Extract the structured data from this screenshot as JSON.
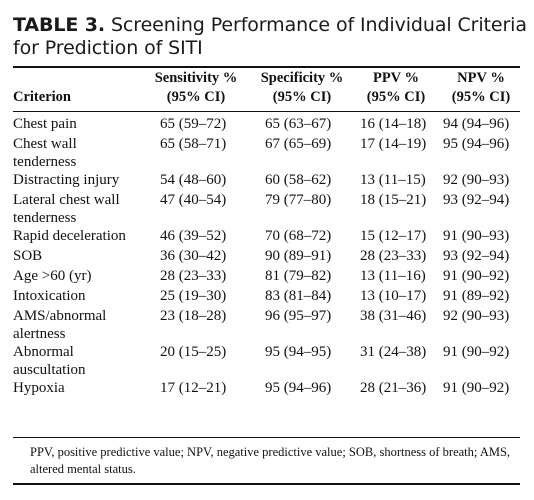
{
  "table": {
    "label": "TABLE 3.",
    "title": "Screening Performance of Individual Criteria for Prediction of SITI",
    "headers": {
      "criterion": "Criterion",
      "sensitivity_line1": "Sensitivity %",
      "sensitivity_line2": "(95% CI)",
      "specificity_line1": "Specificity %",
      "specificity_line2": "(95% CI)",
      "ppv_line1": "PPV %",
      "ppv_line2": "(95% CI)",
      "npv_line1": "NPV %",
      "npv_line2": "(95% CI)"
    },
    "rows": [
      {
        "criterion": "Chest pain",
        "sensitivity": "65 (59–72)",
        "specificity": "65 (63–67)",
        "ppv": "16 (14–18)",
        "npv": "94 (94–96)"
      },
      {
        "criterion": "Chest wall tenderness",
        "sensitivity": "65 (58–71)",
        "specificity": "67 (65–69)",
        "ppv": "17 (14–19)",
        "npv": "95 (94–96)"
      },
      {
        "criterion": "Distracting injury",
        "sensitivity": "54 (48–60)",
        "specificity": "60 (58–62)",
        "ppv": "13 (11–15)",
        "npv": "92 (90–93)"
      },
      {
        "criterion": "Lateral chest wall tenderness",
        "sensitivity": "47 (40–54)",
        "specificity": "79 (77–80)",
        "ppv": "18 (15–21)",
        "npv": "93 (92–94)"
      },
      {
        "criterion": "Rapid deceleration",
        "sensitivity": "46 (39–52)",
        "specificity": "70 (68–72)",
        "ppv": "15 (12–17)",
        "npv": "91 (90–93)"
      },
      {
        "criterion": "SOB",
        "sensitivity": "36 (30–42)",
        "specificity": "90 (89–91)",
        "ppv": "28 (23–33)",
        "npv": "93 (92–94)"
      },
      {
        "criterion": "Age >60 (yr)",
        "sensitivity": "28 (23–33)",
        "specificity": "81 (79–82)",
        "ppv": "13 (11–16)",
        "npv": "91 (90–92)"
      },
      {
        "criterion": "Intoxication",
        "sensitivity": "25 (19–30)",
        "specificity": "83 (81–84)",
        "ppv": "13 (10–17)",
        "npv": "91 (89–92)"
      },
      {
        "criterion": "AMS/abnormal alertness",
        "sensitivity": "23 (18–28)",
        "specificity": "96 (95–97)",
        "ppv": "38 (31–46)",
        "npv": "92 (90–93)"
      },
      {
        "criterion": "Abnormal auscultation",
        "sensitivity": "20 (15–25)",
        "specificity": "95 (94–95)",
        "ppv": "31 (24–38)",
        "npv": "91 (90–92)"
      },
      {
        "criterion": "Hypoxia",
        "sensitivity": "17 (12–21)",
        "specificity": "95 (94–96)",
        "ppv": "28 (21–36)",
        "npv": "91 (90–92)"
      }
    ],
    "footnote": "PPV, positive predictive value; NPV, negative predictive value; SOB, shortness of breath; AMS, altered mental status."
  }
}
